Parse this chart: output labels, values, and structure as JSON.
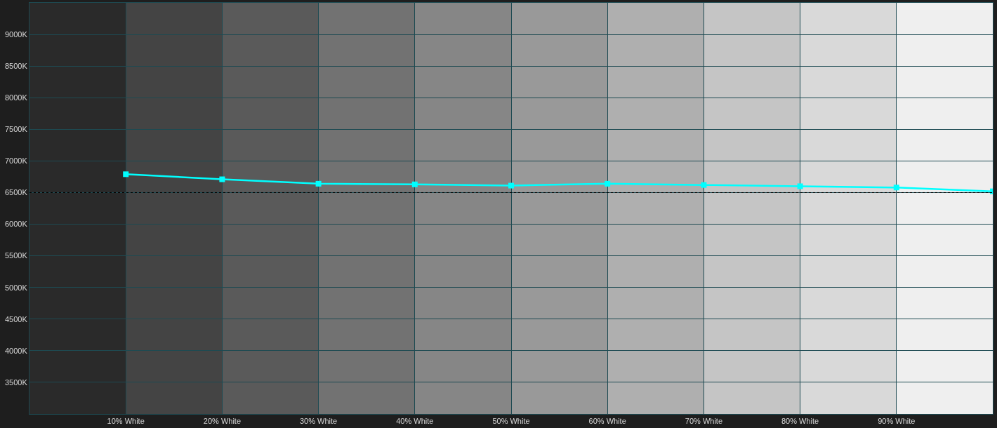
{
  "chart_data": {
    "type": "line",
    "x": [
      10,
      20,
      30,
      40,
      50,
      60,
      70,
      80,
      90,
      100
    ],
    "series": [
      {
        "color": "#00ffff",
        "values": [
          6790,
          6710,
          6640,
          6630,
          6610,
          6640,
          6620,
          6600,
          6580,
          6520
        ]
      }
    ],
    "marker": "square",
    "line_style": "solid",
    "xlim": [
      0,
      100
    ],
    "xticks": [
      {
        "value": 10,
        "label": "10% White"
      },
      {
        "value": 20,
        "label": "20% White"
      },
      {
        "value": 30,
        "label": "30% White"
      },
      {
        "value": 40,
        "label": "40% White"
      },
      {
        "value": 50,
        "label": "50% White"
      },
      {
        "value": 60,
        "label": "60% White"
      },
      {
        "value": 70,
        "label": "70% White"
      },
      {
        "value": 80,
        "label": "80% White"
      },
      {
        "value": 90,
        "label": "90% White"
      }
    ],
    "ylim": [
      3000,
      9500
    ],
    "yticks": [
      {
        "value": 3500,
        "label": "3500K"
      },
      {
        "value": 4000,
        "label": "4000K"
      },
      {
        "value": 4500,
        "label": "4500K"
      },
      {
        "value": 5000,
        "label": "5000K"
      },
      {
        "value": 5500,
        "label": "5500K"
      },
      {
        "value": 6000,
        "label": "6000K"
      },
      {
        "value": 6500,
        "label": "6500K"
      },
      {
        "value": 7000,
        "label": "7000K"
      },
      {
        "value": 7500,
        "label": "7500K"
      },
      {
        "value": 8000,
        "label": "8000K"
      },
      {
        "value": 8500,
        "label": "8500K"
      },
      {
        "value": 9000,
        "label": "9000K"
      }
    ],
    "grid": true,
    "ref_lines": [
      {
        "axis": "y",
        "value": 6500,
        "line_style": "dashed",
        "color": "#000000"
      }
    ],
    "bands": [
      {
        "axis": "x",
        "from": 0,
        "to": 10,
        "color": "#2a2a2a"
      },
      {
        "axis": "x",
        "from": 10,
        "to": 20,
        "color": "#444444"
      },
      {
        "axis": "x",
        "from": 20,
        "to": 30,
        "color": "#5a5a5a"
      },
      {
        "axis": "x",
        "from": 30,
        "to": 40,
        "color": "#727272"
      },
      {
        "axis": "x",
        "from": 40,
        "to": 50,
        "color": "#868686"
      },
      {
        "axis": "x",
        "from": 50,
        "to": 60,
        "color": "#999999"
      },
      {
        "axis": "x",
        "from": 60,
        "to": 70,
        "color": "#afafaf"
      },
      {
        "axis": "x",
        "from": 70,
        "to": 80,
        "color": "#c5c5c5"
      },
      {
        "axis": "x",
        "from": 80,
        "to": 90,
        "color": "#d9d9d9"
      },
      {
        "axis": "x",
        "from": 90,
        "to": 100,
        "color": "#efefef"
      }
    ]
  }
}
